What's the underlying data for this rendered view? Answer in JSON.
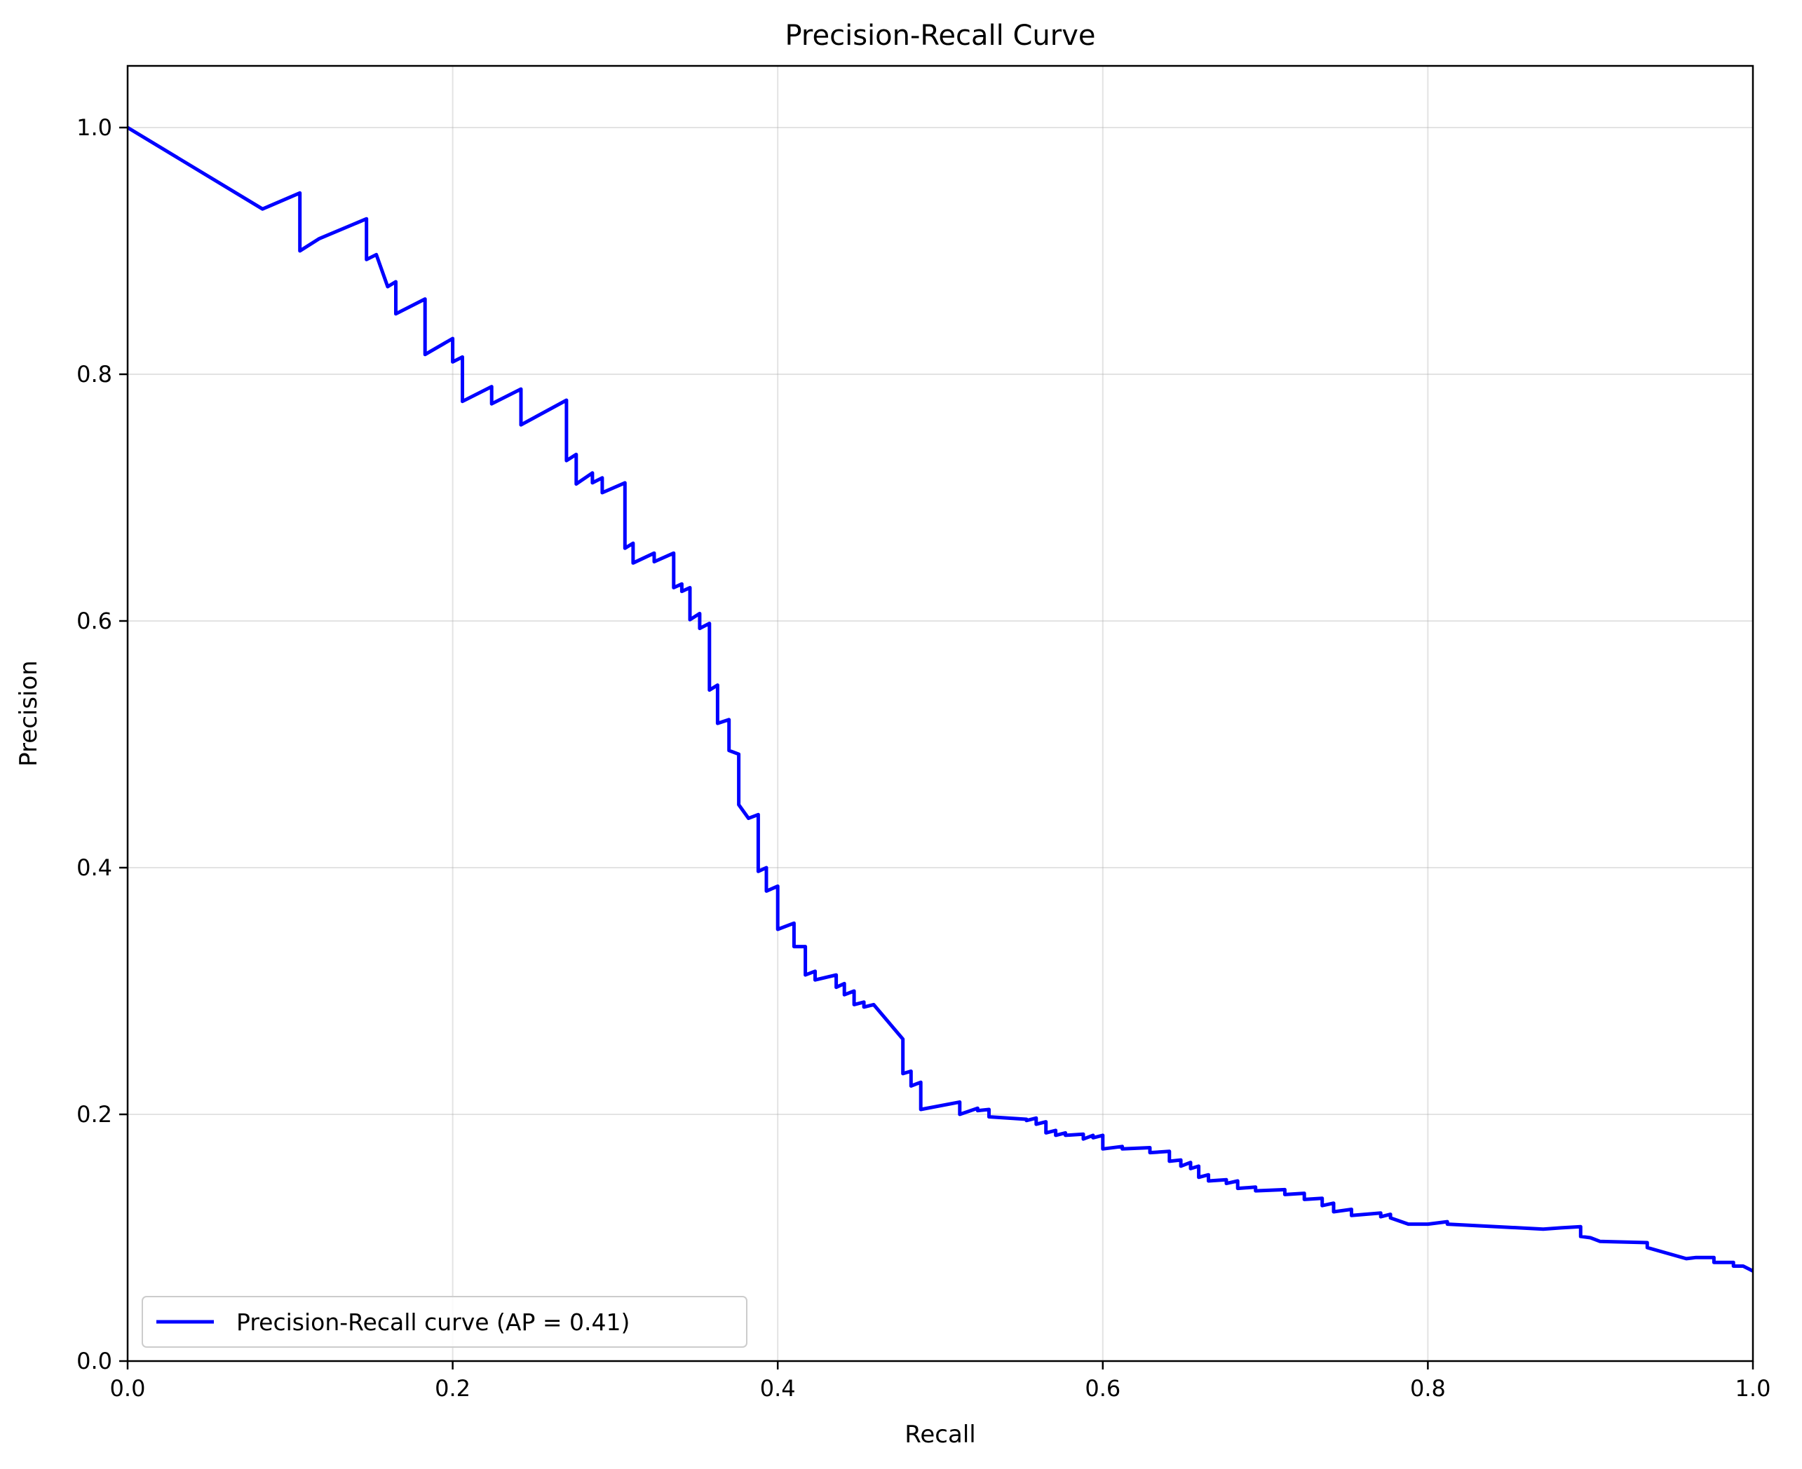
{
  "chart_data": {
    "type": "line",
    "title": "Precision-Recall Curve",
    "xlabel": "Recall",
    "ylabel": "Precision",
    "xlim": [
      0.0,
      1.0
    ],
    "ylim": [
      0.0,
      1.05
    ],
    "xticks": [
      "0.0",
      "0.2",
      "0.4",
      "0.6",
      "0.8",
      "1.0"
    ],
    "xtick_values": [
      0.0,
      0.2,
      0.4,
      0.6,
      0.8,
      1.0
    ],
    "yticks": [
      "0.0",
      "0.2",
      "0.4",
      "0.6",
      "0.8",
      "1.0"
    ],
    "ytick_values": [
      0.0,
      0.2,
      0.4,
      0.6,
      0.8,
      1.0
    ],
    "grid": true,
    "legend_position": "lower-left",
    "series": [
      {
        "name": "Precision-Recall curve (AP = 0.41)",
        "color": "#0000ff",
        "points": [
          [
            0.0,
            1.0
          ],
          [
            0.083,
            0.934
          ],
          [
            0.106,
            0.947
          ],
          [
            0.106,
            0.9
          ],
          [
            0.118,
            0.91
          ],
          [
            0.147,
            0.926
          ],
          [
            0.147,
            0.893
          ],
          [
            0.153,
            0.897
          ],
          [
            0.16,
            0.871
          ],
          [
            0.165,
            0.875
          ],
          [
            0.165,
            0.849
          ],
          [
            0.183,
            0.861
          ],
          [
            0.183,
            0.816
          ],
          [
            0.2,
            0.829
          ],
          [
            0.2,
            0.81
          ],
          [
            0.206,
            0.814
          ],
          [
            0.206,
            0.778
          ],
          [
            0.224,
            0.79
          ],
          [
            0.224,
            0.776
          ],
          [
            0.242,
            0.788
          ],
          [
            0.242,
            0.759
          ],
          [
            0.27,
            0.779
          ],
          [
            0.27,
            0.73
          ],
          [
            0.276,
            0.735
          ],
          [
            0.276,
            0.711
          ],
          [
            0.286,
            0.72
          ],
          [
            0.286,
            0.712
          ],
          [
            0.292,
            0.716
          ],
          [
            0.292,
            0.704
          ],
          [
            0.306,
            0.712
          ],
          [
            0.306,
            0.659
          ],
          [
            0.311,
            0.663
          ],
          [
            0.311,
            0.647
          ],
          [
            0.324,
            0.655
          ],
          [
            0.324,
            0.648
          ],
          [
            0.336,
            0.655
          ],
          [
            0.336,
            0.627
          ],
          [
            0.341,
            0.63
          ],
          [
            0.341,
            0.624
          ],
          [
            0.346,
            0.627
          ],
          [
            0.346,
            0.601
          ],
          [
            0.352,
            0.606
          ],
          [
            0.352,
            0.594
          ],
          [
            0.358,
            0.598
          ],
          [
            0.358,
            0.544
          ],
          [
            0.363,
            0.548
          ],
          [
            0.363,
            0.517
          ],
          [
            0.37,
            0.52
          ],
          [
            0.37,
            0.495
          ],
          [
            0.376,
            0.492
          ],
          [
            0.376,
            0.451
          ],
          [
            0.382,
            0.44
          ],
          [
            0.388,
            0.443
          ],
          [
            0.388,
            0.397
          ],
          [
            0.393,
            0.4
          ],
          [
            0.393,
            0.381
          ],
          [
            0.4,
            0.385
          ],
          [
            0.4,
            0.35
          ],
          [
            0.41,
            0.355
          ],
          [
            0.41,
            0.336
          ],
          [
            0.417,
            0.336
          ],
          [
            0.417,
            0.313
          ],
          [
            0.423,
            0.316
          ],
          [
            0.423,
            0.309
          ],
          [
            0.436,
            0.313
          ],
          [
            0.436,
            0.303
          ],
          [
            0.441,
            0.306
          ],
          [
            0.441,
            0.297
          ],
          [
            0.447,
            0.3
          ],
          [
            0.447,
            0.289
          ],
          [
            0.453,
            0.291
          ],
          [
            0.453,
            0.287
          ],
          [
            0.459,
            0.289
          ],
          [
            0.477,
            0.261
          ],
          [
            0.477,
            0.233
          ],
          [
            0.482,
            0.235
          ],
          [
            0.482,
            0.223
          ],
          [
            0.488,
            0.226
          ],
          [
            0.488,
            0.204
          ],
          [
            0.512,
            0.21
          ],
          [
            0.512,
            0.2
          ],
          [
            0.523,
            0.205
          ],
          [
            0.523,
            0.203
          ],
          [
            0.53,
            0.204
          ],
          [
            0.53,
            0.198
          ],
          [
            0.553,
            0.196
          ],
          [
            0.553,
            0.195
          ],
          [
            0.559,
            0.197
          ],
          [
            0.559,
            0.192
          ],
          [
            0.565,
            0.194
          ],
          [
            0.565,
            0.185
          ],
          [
            0.571,
            0.187
          ],
          [
            0.571,
            0.183
          ],
          [
            0.577,
            0.185
          ],
          [
            0.577,
            0.183
          ],
          [
            0.588,
            0.184
          ],
          [
            0.588,
            0.18
          ],
          [
            0.594,
            0.183
          ],
          [
            0.594,
            0.181
          ],
          [
            0.6,
            0.183
          ],
          [
            0.6,
            0.172
          ],
          [
            0.612,
            0.174
          ],
          [
            0.612,
            0.172
          ],
          [
            0.629,
            0.173
          ],
          [
            0.629,
            0.169
          ],
          [
            0.641,
            0.17
          ],
          [
            0.641,
            0.162
          ],
          [
            0.648,
            0.163
          ],
          [
            0.648,
            0.158
          ],
          [
            0.654,
            0.161
          ],
          [
            0.654,
            0.156
          ],
          [
            0.659,
            0.158
          ],
          [
            0.659,
            0.149
          ],
          [
            0.665,
            0.151
          ],
          [
            0.665,
            0.146
          ],
          [
            0.676,
            0.147
          ],
          [
            0.676,
            0.144
          ],
          [
            0.683,
            0.146
          ],
          [
            0.683,
            0.14
          ],
          [
            0.694,
            0.141
          ],
          [
            0.694,
            0.138
          ],
          [
            0.712,
            0.139
          ],
          [
            0.712,
            0.135
          ],
          [
            0.724,
            0.136
          ],
          [
            0.724,
            0.131
          ],
          [
            0.735,
            0.132
          ],
          [
            0.735,
            0.126
          ],
          [
            0.742,
            0.128
          ],
          [
            0.742,
            0.121
          ],
          [
            0.753,
            0.123
          ],
          [
            0.753,
            0.118
          ],
          [
            0.771,
            0.12
          ],
          [
            0.771,
            0.117
          ],
          [
            0.777,
            0.119
          ],
          [
            0.777,
            0.116
          ],
          [
            0.788,
            0.111
          ],
          [
            0.8,
            0.111
          ],
          [
            0.812,
            0.113
          ],
          [
            0.812,
            0.111
          ],
          [
            0.871,
            0.107
          ],
          [
            0.882,
            0.108
          ],
          [
            0.894,
            0.109
          ],
          [
            0.894,
            0.101
          ],
          [
            0.9,
            0.1
          ],
          [
            0.906,
            0.097
          ],
          [
            0.935,
            0.096
          ],
          [
            0.935,
            0.092
          ],
          [
            0.959,
            0.083
          ],
          [
            0.965,
            0.084
          ],
          [
            0.976,
            0.084
          ],
          [
            0.976,
            0.08
          ],
          [
            0.988,
            0.08
          ],
          [
            0.988,
            0.077
          ],
          [
            0.994,
            0.077
          ],
          [
            1.0,
            0.073
          ]
        ]
      }
    ]
  }
}
